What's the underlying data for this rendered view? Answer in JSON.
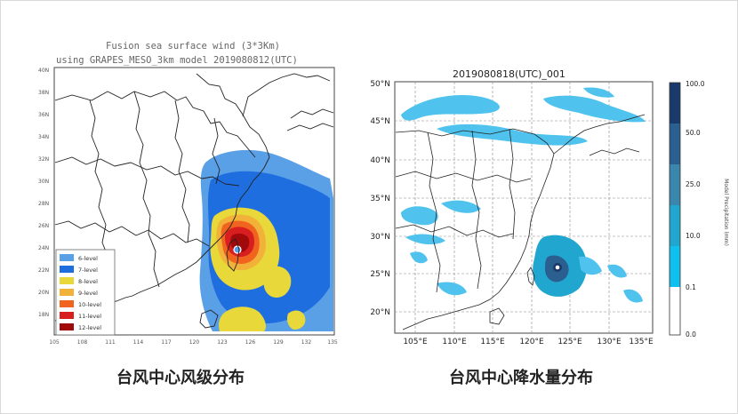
{
  "left": {
    "title_line1": "Fusion sea surface wind (3*3Km)",
    "title_line2": "using GRAPES_MESO_3km model 2019080812(UTC)",
    "lat_labels": [
      "40N",
      "38N",
      "36N",
      "34N",
      "32N",
      "30N",
      "28N",
      "26N",
      "24N",
      "22N",
      "20N",
      "18N"
    ],
    "lon_labels": [
      "105",
      "108",
      "111",
      "114",
      "117",
      "120",
      "123",
      "126",
      "129",
      "132",
      "135"
    ],
    "legend": [
      {
        "label": "6-level",
        "color": "#5aa0e6"
      },
      {
        "label": "7-level",
        "color": "#1f6ee0"
      },
      {
        "label": "8-level",
        "color": "#e8d83a"
      },
      {
        "label": "9-level",
        "color": "#f2b23a"
      },
      {
        "label": "10-level",
        "color": "#f06420"
      },
      {
        "label": "11-level",
        "color": "#d81e1e"
      },
      {
        "label": "12-level",
        "color": "#a00a0a"
      }
    ],
    "caption": "台风中心风级分布"
  },
  "right": {
    "title": "2019080818(UTC)_001",
    "lat_labels": [
      "50°N",
      "45°N",
      "40°N",
      "35°N",
      "30°N",
      "25°N",
      "20°N"
    ],
    "lon_labels": [
      "105°E",
      "110°E",
      "115°E",
      "120°E",
      "125°E",
      "130°E",
      "135°E"
    ],
    "colorbar_ticks": [
      "100.0",
      "50.0",
      "25.0",
      "10.0",
      "0.1",
      "0.0"
    ],
    "colorbar_colors": [
      "#1a3a6b",
      "#2a5f8f",
      "#3a86ad",
      "#21a6cf",
      "#0fc0ee"
    ],
    "colorbar_label": "Model Precipitation (mm)",
    "caption": "台风中心降水量分布"
  }
}
